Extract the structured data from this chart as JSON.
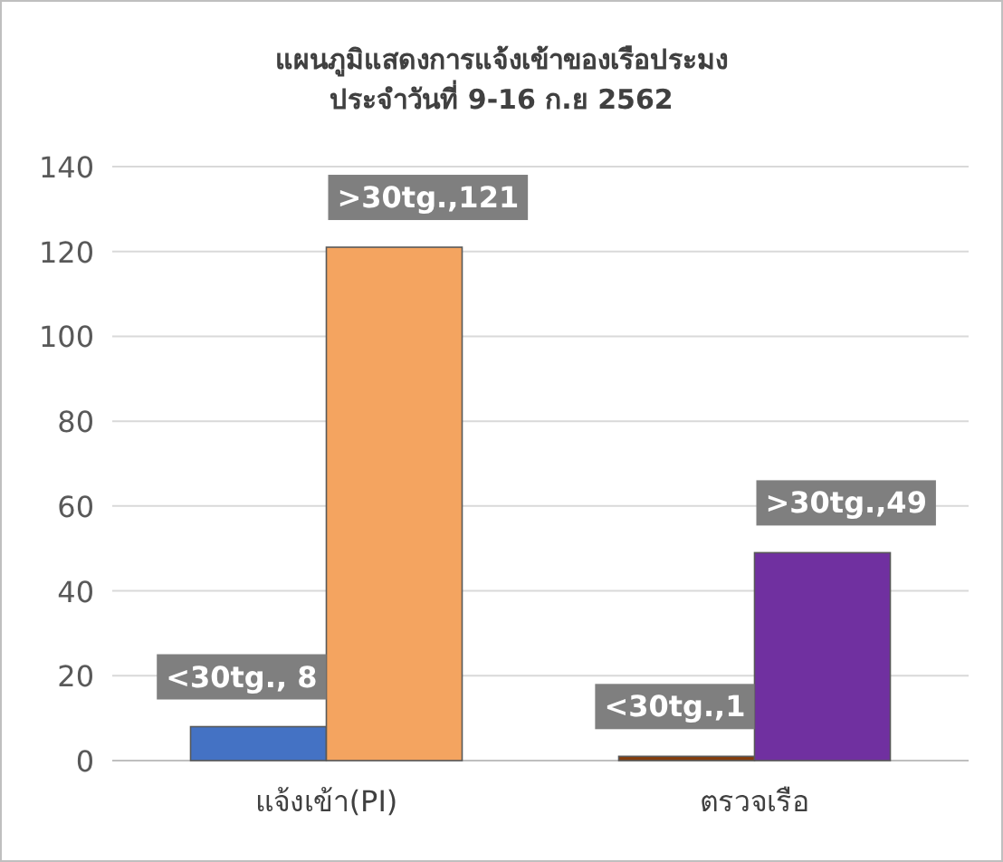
{
  "chart_data": {
    "type": "bar",
    "title": "แผนภูมิแสดงการแจ้งเข้าของเรือประมง",
    "subtitle": "ประจำวันที่ 9-16 ก.ย 2562",
    "categories": [
      "แจ้งเข้า(PI)",
      "ตรวจเรือ"
    ],
    "series": [
      {
        "colors": [
          "#4472c4",
          "#843c0c"
        ],
        "values": [
          8,
          1
        ],
        "value_labels": [
          "<30tg., 8",
          "<30tg.,1"
        ]
      },
      {
        "colors": [
          "#f4a460",
          "#7030a0"
        ],
        "values": [
          121,
          49
        ],
        "value_labels": [
          ">30tg.,121",
          ">30tg.,49"
        ]
      }
    ],
    "ylim": [
      0,
      140
    ],
    "yticks": [
      0,
      20,
      40,
      60,
      80,
      100,
      120,
      140
    ],
    "grid": "y"
  }
}
